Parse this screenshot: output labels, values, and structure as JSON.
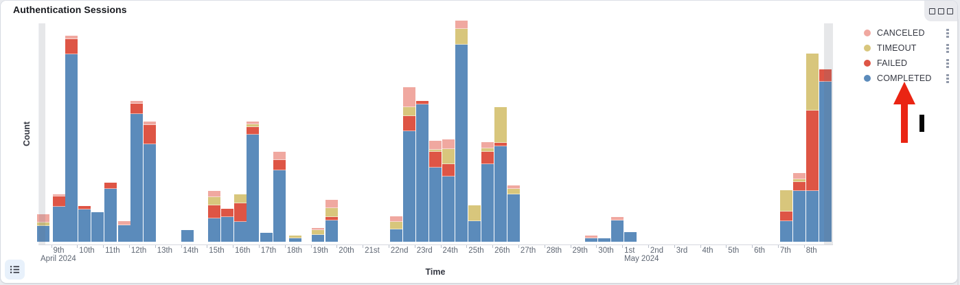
{
  "panel": {
    "title": "Authentication Sessions",
    "options_icon": "three-squares-icon",
    "legend_toggle_icon": "bulleted-list-icon",
    "legend_item_options_icon": "kebab-dots-icon"
  },
  "colors": {
    "completed": "#5b8bbb",
    "failed": "#de5545",
    "timeout": "#d8c67c",
    "canceled": "#f0a8a0",
    "endzone": "rgba(105,112,125,0.17)",
    "annotation_arrow": "#ea2413",
    "annotation_marker": "#050505"
  },
  "legend": {
    "items": [
      {
        "label": "CANCELED",
        "color": "#f0a8a0",
        "key": "canceled"
      },
      {
        "label": "TIMEOUT",
        "color": "#d8c67c",
        "key": "timeout"
      },
      {
        "label": "FAILED",
        "color": "#de5545",
        "key": "failed"
      },
      {
        "label": "COMPLETED",
        "color": "#5b8bbb",
        "key": "completed"
      }
    ]
  },
  "annotations": {
    "arrow": {
      "points_to": "COMPLETED legend item",
      "direction": "up"
    },
    "marker": {
      "shape": "black vertical bar"
    }
  },
  "chart_data": {
    "type": "bar",
    "stacked": true,
    "title": "Authentication Sessions",
    "xlabel": "Time",
    "ylabel": "Count",
    "legend_position": "right",
    "grid": false,
    "y_axis_note": "no numeric y tick labels visible; segment values are relative units (pixel heights)",
    "bucket_interval": "12h",
    "series_order_bottom_to_top": [
      "COMPLETED",
      "FAILED",
      "TIMEOUT",
      "CANCELED"
    ],
    "geometry": {
      "plot_left": 55,
      "plot_right": 1211.5,
      "plot_top": 33,
      "baseline": 355,
      "bar_width": 17.5
    },
    "endzones": [
      {
        "x": 56,
        "w": 8.5,
        "note": "partial bucket left"
      },
      {
        "x": 1199,
        "w": 12.5,
        "note": "partial bucket right"
      }
    ],
    "x_ticks": [
      {
        "label": "9th",
        "x": 73.5,
        "sub": "April 2024",
        "sub_x": 58
      },
      {
        "label": "10th",
        "x": 111.3
      },
      {
        "label": "11th",
        "x": 149.1
      },
      {
        "label": "12th",
        "x": 186.9
      },
      {
        "label": "13th",
        "x": 224.7
      },
      {
        "label": "14th",
        "x": 262.5
      },
      {
        "label": "15th",
        "x": 300.3
      },
      {
        "label": "16th",
        "x": 338.1
      },
      {
        "label": "17th",
        "x": 375.9
      },
      {
        "label": "18th",
        "x": 413.7
      },
      {
        "label": "19th",
        "x": 451.5
      },
      {
        "label": "20th",
        "x": 489.3
      },
      {
        "label": "21st",
        "x": 527.1
      },
      {
        "label": "22nd",
        "x": 564.9
      },
      {
        "label": "23rd",
        "x": 602.7
      },
      {
        "label": "24th",
        "x": 640.5
      },
      {
        "label": "25th",
        "x": 678.3
      },
      {
        "label": "26th",
        "x": 716.1
      },
      {
        "label": "27th",
        "x": 753.9
      },
      {
        "label": "28th",
        "x": 791.7
      },
      {
        "label": "29th",
        "x": 829.5
      },
      {
        "label": "30th",
        "x": 867.3
      },
      {
        "label": "1st",
        "x": 905.1,
        "sub": "May 2024",
        "sub_x": 908
      },
      {
        "label": "2nd",
        "x": 942.9
      },
      {
        "label": "3rd",
        "x": 980.7
      },
      {
        "label": "4th",
        "x": 1018.5
      },
      {
        "label": "5th",
        "x": 1056.3
      },
      {
        "label": "6th",
        "x": 1094.1
      },
      {
        "label": "7th",
        "x": 1131.9
      },
      {
        "label": "8th",
        "x": 1169.7
      }
    ],
    "bars": [
      {
        "left": 53,
        "bucket": "Apr 8 PM",
        "completed": 23,
        "failed": 0,
        "timeout": 5,
        "canceled": 12
      },
      {
        "left": 76,
        "bucket": "Apr 9 AM",
        "completed": 51,
        "failed": 15,
        "timeout": 0,
        "canceled": 3
      },
      {
        "left": 94,
        "bucket": "Apr 9 PM",
        "completed": 273,
        "failed": 22,
        "timeout": 0,
        "canceled": 5
      },
      {
        "left": 113,
        "bucket": "Apr 10 AM",
        "completed": 47,
        "failed": 5,
        "timeout": 0,
        "canceled": 0
      },
      {
        "left": 132,
        "bucket": "Apr 10 PM",
        "completed": 43,
        "failed": 0,
        "timeout": 0,
        "canceled": 0
      },
      {
        "left": 151,
        "bucket": "Apr 11 AM",
        "completed": 77,
        "failed": 9,
        "timeout": 0,
        "canceled": 0
      },
      {
        "left": 171,
        "bucket": "Apr 11 PM",
        "completed": 24,
        "failed": 0,
        "timeout": 0,
        "canceled": 6
      },
      {
        "left": 189,
        "bucket": "Apr 12 AM",
        "completed": 186,
        "failed": 15,
        "timeout": 0,
        "canceled": 4
      },
      {
        "left": 208,
        "bucket": "Apr 12 PM",
        "completed": 142,
        "failed": 28,
        "timeout": 0,
        "canceled": 5
      },
      {
        "left": 263,
        "bucket": "Apr 14 AM",
        "completed": 17,
        "failed": 0,
        "timeout": 0,
        "canceled": 0
      },
      {
        "left": 302,
        "bucket": "Apr 15 AM",
        "completed": 34,
        "failed": 19,
        "timeout": 12,
        "canceled": 9
      },
      {
        "left": 321,
        "bucket": "Apr 15 PM",
        "completed": 36,
        "failed": 12,
        "timeout": 0,
        "canceled": 0
      },
      {
        "left": 340,
        "bucket": "Apr 16 AM",
        "completed": 29,
        "failed": 27,
        "timeout": 13,
        "canceled": 0
      },
      {
        "left": 358,
        "bucket": "Apr 16 PM",
        "completed": 156,
        "failed": 11,
        "timeout": 4,
        "canceled": 4
      },
      {
        "left": 378,
        "bucket": "Apr 17 AM",
        "completed": 13,
        "failed": 0,
        "timeout": 0,
        "canceled": 0
      },
      {
        "left": 397,
        "bucket": "Apr 17 PM",
        "completed": 104,
        "failed": 15,
        "timeout": 0,
        "canceled": 12
      },
      {
        "left": 420,
        "bucket": "Apr 18 AM",
        "completed": 5,
        "failed": 0,
        "timeout": 4,
        "canceled": 0
      },
      {
        "left": 453,
        "bucket": "Apr 19 AM",
        "completed": 10,
        "failed": 0,
        "timeout": 7,
        "canceled": 3
      },
      {
        "left": 473,
        "bucket": "Apr 19 PM",
        "completed": 31,
        "failed": 5,
        "timeout": 13,
        "canceled": 12
      },
      {
        "left": 567,
        "bucket": "Apr 22 AM",
        "completed": 18,
        "failed": 0,
        "timeout": 11,
        "canceled": 8
      },
      {
        "left": 586,
        "bucket": "Apr 22 PM",
        "completed": 161,
        "failed": 22,
        "timeout": 13,
        "canceled": 29
      },
      {
        "left": 605,
        "bucket": "Apr 23 AM",
        "completed": 200,
        "failed": 5,
        "timeout": 0,
        "canceled": 0
      },
      {
        "left": 624,
        "bucket": "Apr 23 PM",
        "completed": 108,
        "failed": 23,
        "timeout": 3,
        "canceled": 13
      },
      {
        "left": 643,
        "bucket": "Apr 24 AM",
        "completed": 95,
        "failed": 18,
        "timeout": 22,
        "canceled": 14
      },
      {
        "left": 662,
        "bucket": "Apr 24 PM",
        "completed": 287,
        "failed": 0,
        "timeout": 23,
        "canceled": 12
      },
      {
        "left": 681,
        "bucket": "Apr 25 AM",
        "completed": 30,
        "failed": 0,
        "timeout": 23,
        "canceled": 0
      },
      {
        "left": 700,
        "bucket": "Apr 25 PM",
        "completed": 113,
        "failed": 18,
        "timeout": 5,
        "canceled": 9
      },
      {
        "left": 719,
        "bucket": "Apr 26 AM",
        "completed": 139,
        "failed": 5,
        "timeout": 52,
        "canceled": 0
      },
      {
        "left": 738,
        "bucket": "Apr 26 PM",
        "completed": 69,
        "failed": 0,
        "timeout": 8,
        "canceled": 5
      },
      {
        "left": 851,
        "bucket": "Apr 29 PM",
        "completed": 5,
        "failed": 0,
        "timeout": 0,
        "canceled": 4
      },
      {
        "left": 870,
        "bucket": "Apr 30 AM",
        "completed": 5,
        "failed": 0,
        "timeout": 0,
        "canceled": 0
      },
      {
        "left": 889,
        "bucket": "Apr 30 PM",
        "completed": 31,
        "failed": 0,
        "timeout": 0,
        "canceled": 5
      },
      {
        "left": 908,
        "bucket": "May 1 AM",
        "completed": 14,
        "failed": 0,
        "timeout": 0,
        "canceled": 0
      },
      {
        "left": 1135,
        "bucket": "May 7 AM",
        "completed": 30,
        "failed": 14,
        "timeout": 31,
        "canceled": 0
      },
      {
        "left": 1154,
        "bucket": "May 7 PM",
        "completed": 74,
        "failed": 13,
        "timeout": 4,
        "canceled": 9
      },
      {
        "left": 1173,
        "bucket": "May 8 AM",
        "completed": 74,
        "failed": 117,
        "timeout": 83,
        "canceled": 0
      },
      {
        "left": 1192,
        "bucket": "May 8 PM",
        "completed": 233,
        "failed": 18,
        "timeout": 0,
        "canceled": 0
      }
    ]
  }
}
